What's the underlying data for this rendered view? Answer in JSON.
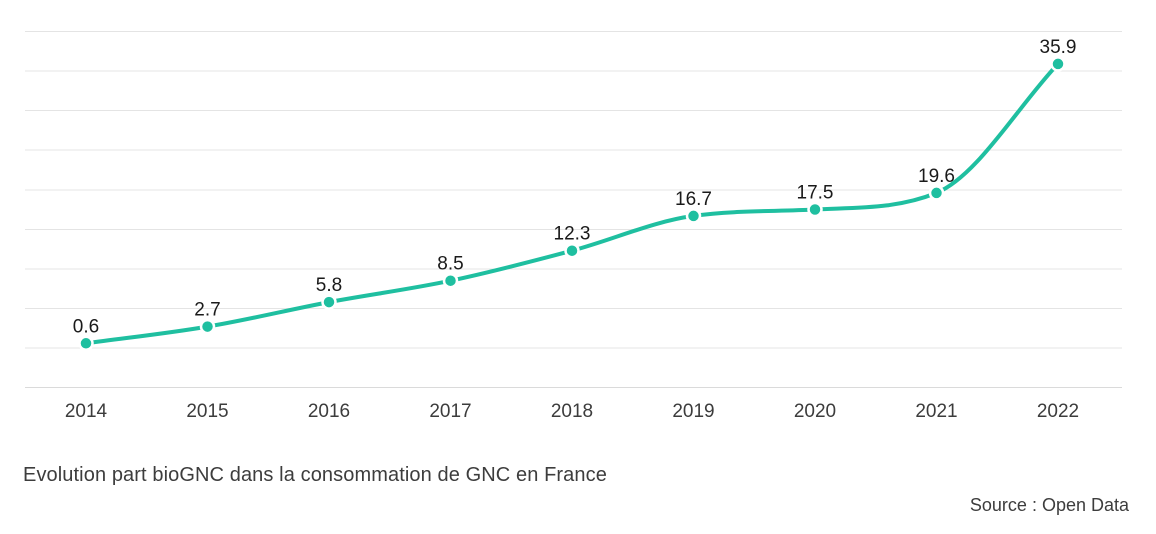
{
  "chart": {
    "accent_color": "#1fbfa0",
    "marker_ring_color": "#ffffff",
    "grid_color": "#e4e4e4",
    "axis_line_color": "#dadada",
    "data_label_color": "#1a1a1a",
    "tick_label_color": "#3c3c3c",
    "background_color": "#ffffff"
  },
  "chart_data": {
    "type": "line",
    "title": "Evolution part bioGNC dans la consommation de GNC en France",
    "source": "Source : Open Data",
    "categories": [
      "2014",
      "2015",
      "2016",
      "2017",
      "2018",
      "2019",
      "2020",
      "2021",
      "2022"
    ],
    "values": [
      0.6,
      2.7,
      5.8,
      8.5,
      12.3,
      16.7,
      17.5,
      19.6,
      35.9
    ],
    "data_labels": [
      "0.6",
      "2.7",
      "5.8",
      "8.5",
      "12.3",
      "16.7",
      "17.5",
      "19.6",
      "35.9"
    ],
    "xlabel": "",
    "ylabel": "",
    "ylim": [
      -5,
      40
    ],
    "gridline_step": 5,
    "grid": true,
    "y_axis_tick_labels_shown": false,
    "data_labels_shown": true,
    "legend": "none",
    "smooth": true
  }
}
